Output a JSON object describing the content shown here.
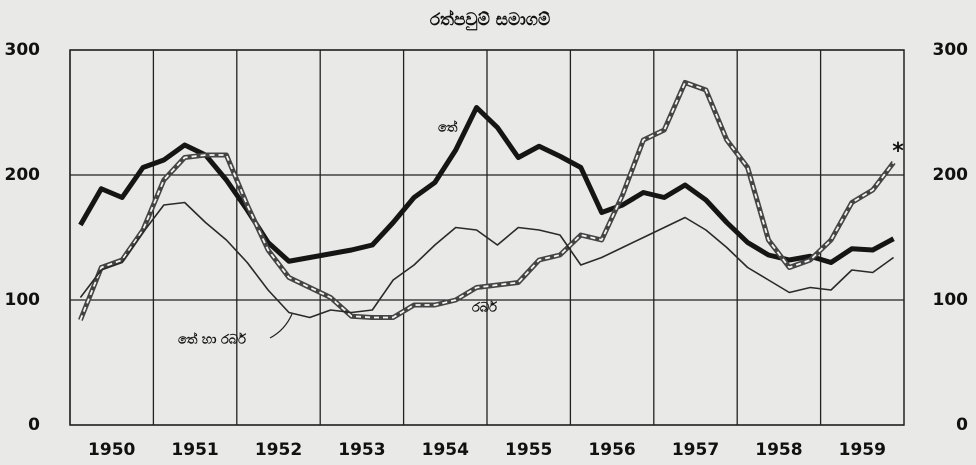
{
  "chart_data": {
    "type": "line",
    "title": "රත්පවුම් සමාගම්",
    "x": [
      1950.125,
      1950.375,
      1950.625,
      1950.875,
      1951.125,
      1951.375,
      1951.625,
      1951.875,
      1952.125,
      1952.375,
      1952.625,
      1952.875,
      1953.125,
      1953.375,
      1953.625,
      1953.875,
      1954.125,
      1954.375,
      1954.625,
      1954.875,
      1955.125,
      1955.375,
      1955.625,
      1955.875,
      1956.125,
      1956.375,
      1956.625,
      1956.875,
      1957.125,
      1957.375,
      1957.625,
      1957.875,
      1958.125,
      1958.375,
      1958.625,
      1958.875,
      1959.125,
      1959.375,
      1959.625,
      1959.875
    ],
    "series": [
      {
        "name": "තේ",
        "color": "#151515",
        "style": "thick",
        "values": [
          160,
          189,
          182,
          206,
          212,
          224,
          216,
          196,
          172,
          146,
          131,
          134,
          137,
          140,
          144,
          162,
          182,
          194,
          220,
          254,
          238,
          214,
          223,
          215,
          206,
          170,
          176,
          186,
          182,
          192,
          180,
          162,
          146,
          136,
          132,
          135,
          130,
          141,
          140,
          149
        ]
      },
      {
        "name": "රබර්",
        "color": "#444444",
        "style": "dashed",
        "values": [
          84,
          126,
          132,
          156,
          196,
          214,
          216,
          216,
          176,
          140,
          118,
          110,
          102,
          87,
          86,
          86,
          96,
          96,
          100,
          110,
          112,
          114,
          132,
          136,
          152,
          148,
          184,
          228,
          236,
          274,
          268,
          228,
          206,
          148,
          126,
          132,
          148,
          178,
          188,
          210
        ]
      },
      {
        "name": "තේ හා රබර්",
        "color": "#2a2a2a",
        "style": "thin",
        "values": [
          102,
          124,
          130,
          154,
          176,
          178,
          162,
          148,
          130,
          108,
          90,
          86,
          92,
          90,
          92,
          116,
          128,
          144,
          158,
          156,
          144,
          158,
          156,
          152,
          128,
          134,
          142,
          150,
          158,
          166,
          156,
          142,
          126,
          116,
          106,
          110,
          108,
          124,
          122,
          134
        ]
      }
    ],
    "annotation": "*",
    "xlim": [
      1950,
      1960
    ],
    "xticks": [
      1950,
      1951,
      1952,
      1953,
      1954,
      1955,
      1956,
      1957,
      1958,
      1959
    ],
    "ylim": [
      0,
      300
    ],
    "yticks": [
      0,
      100,
      200,
      300
    ],
    "grid": true,
    "right_axis": true
  }
}
